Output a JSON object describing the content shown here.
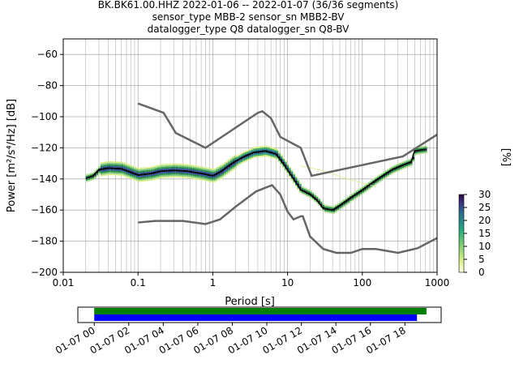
{
  "title_lines": [
    "BK.BK61.00.HHZ   2022-01-06 -- 2022-01-07  (36/36 segments)",
    "sensor_type MBB-2 sensor_sn MBB2-BV",
    "datalogger_type Q8 datalogger_sn Q8-BV"
  ],
  "colorbar": {
    "label": "[%]",
    "ticks": [
      "0",
      "5",
      "10",
      "15",
      "20",
      "25",
      "30"
    ],
    "range": [
      0,
      30
    ]
  },
  "timeline": {
    "tick_labels": [
      "01-07 00",
      "01-07 02",
      "01-07 04",
      "01-07 06",
      "01-07 08",
      "01-07 10",
      "01-07 12",
      "01-07 14",
      "01-07 16",
      "01-07 18"
    ],
    "tick_hours": [
      0,
      2,
      4,
      6,
      8,
      10,
      12,
      14,
      16,
      18
    ],
    "axis_start_hour": -0.95,
    "axis_end_hour": 20.1,
    "bars": [
      {
        "color": "#008000",
        "start_hour": 0,
        "end_hour": 19.25
      },
      {
        "color": "#0000ff",
        "start_hour": 0,
        "end_hour": 18.7
      }
    ]
  },
  "chart_data": {
    "type": "heatmap",
    "title": "",
    "xlabel": "Period [s]",
    "ylabel": "Power [m²/s⁴/Hz] [dB]",
    "x_scale": "log",
    "xlim": [
      0.01,
      1000
    ],
    "ylim": [
      -200,
      -50
    ],
    "grid": true,
    "x_ticks": [
      {
        "value": 0.01,
        "label": "0.01"
      },
      {
        "value": 0.1,
        "label": "0.1"
      },
      {
        "value": 1,
        "label": "1"
      },
      {
        "value": 10,
        "label": "10"
      },
      {
        "value": 100,
        "label": "100"
      },
      {
        "value": 1000,
        "label": "1000"
      }
    ],
    "y_ticks": [
      {
        "value": -60,
        "label": "−60"
      },
      {
        "value": -80,
        "label": "−80"
      },
      {
        "value": -100,
        "label": "−100"
      },
      {
        "value": -120,
        "label": "−120"
      },
      {
        "value": -140,
        "label": "−140"
      },
      {
        "value": -160,
        "label": "−160"
      },
      {
        "value": -180,
        "label": "−180"
      },
      {
        "value": -200,
        "label": "−200"
      }
    ],
    "colormap": "viridis_r",
    "series": [
      {
        "name": "",
        "style": "noise-model",
        "points": [
          [
            0.1,
            -91.5
          ],
          [
            0.22,
            -97.5
          ],
          [
            0.32,
            -110.5
          ],
          [
            0.8,
            -120
          ],
          [
            4.0,
            -97.5
          ],
          [
            4.6,
            -96.5
          ],
          [
            6.0,
            -101
          ],
          [
            8.0,
            -113
          ],
          [
            15.0,
            -120
          ],
          [
            21.0,
            -138
          ],
          [
            350,
            -125.5
          ],
          [
            1000,
            -111.5
          ]
        ]
      },
      {
        "name": "",
        "style": "noise-model",
        "points": [
          [
            0.1,
            -168
          ],
          [
            0.17,
            -167
          ],
          [
            0.4,
            -167
          ],
          [
            0.8,
            -169
          ],
          [
            1.25,
            -166
          ],
          [
            2.0,
            -158
          ],
          [
            3.8,
            -148
          ],
          [
            6.2,
            -144
          ],
          [
            8.0,
            -150
          ],
          [
            10.0,
            -161
          ],
          [
            12.0,
            -166
          ],
          [
            15.0,
            -164
          ],
          [
            16.0,
            -164
          ],
          [
            20.0,
            -177
          ],
          [
            30.0,
            -185
          ],
          [
            45.0,
            -187.5
          ],
          [
            70.0,
            -187.5
          ],
          [
            100.0,
            -185
          ],
          [
            150.0,
            -185
          ],
          [
            200.0,
            -186
          ],
          [
            300.0,
            -187.5
          ],
          [
            550.0,
            -184.5
          ],
          [
            1000,
            -178
          ]
        ]
      },
      {
        "name": "",
        "style": "mode",
        "points": [
          [
            0.02,
            -139.5
          ],
          [
            0.025,
            -138
          ],
          [
            0.03,
            -134
          ],
          [
            0.04,
            -133
          ],
          [
            0.06,
            -133.5
          ],
          [
            0.1,
            -137.5
          ],
          [
            0.15,
            -136.5
          ],
          [
            0.2,
            -135
          ],
          [
            0.3,
            -134.5
          ],
          [
            0.45,
            -135
          ],
          [
            0.7,
            -136.5
          ],
          [
            1.0,
            -138
          ],
          [
            1.3,
            -135
          ],
          [
            1.8,
            -130
          ],
          [
            2.5,
            -126
          ],
          [
            3.5,
            -123
          ],
          [
            5.0,
            -122
          ],
          [
            7.0,
            -124
          ],
          [
            9.0,
            -131
          ],
          [
            12.0,
            -140
          ],
          [
            15.0,
            -147
          ],
          [
            20.0,
            -150
          ],
          [
            25.0,
            -154
          ],
          [
            30.0,
            -159
          ],
          [
            40.0,
            -160
          ],
          [
            50.0,
            -157
          ],
          [
            70.0,
            -152
          ],
          [
            100.0,
            -147
          ],
          [
            150.0,
            -141
          ],
          [
            200.0,
            -137
          ],
          [
            250.0,
            -134
          ],
          [
            350.0,
            -131
          ],
          [
            450.0,
            -129
          ],
          [
            500.0,
            -122
          ],
          [
            700.0,
            -121
          ]
        ]
      },
      {
        "name": "",
        "style": "faint-outlier",
        "points": [
          [
            15.0,
            -132
          ],
          [
            25.0,
            -134
          ],
          [
            40.0,
            -137
          ],
          [
            60.0,
            -140
          ],
          [
            100.0,
            -143
          ],
          [
            150.0,
            -145
          ]
        ]
      }
    ]
  }
}
